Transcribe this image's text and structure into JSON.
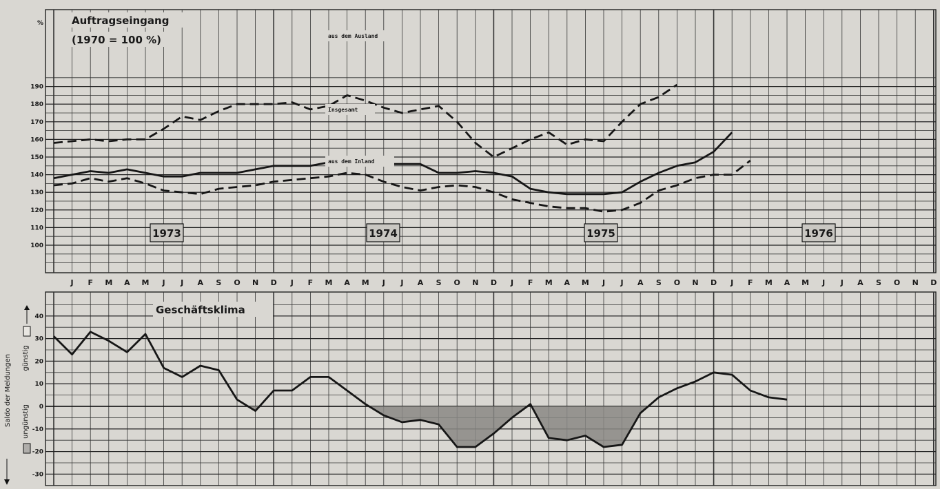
{
  "chart_data": [
    {
      "type": "line",
      "title": "Auftragseingang",
      "subtitle": "(1970 = 100 %)",
      "unit_label": "%",
      "ylim": [
        90,
        190
      ],
      "yticks": [
        100,
        110,
        120,
        130,
        140,
        150,
        160,
        170,
        180,
        190
      ],
      "x_start": "1972-12",
      "x_end": "1976-12",
      "grid": true,
      "series": [
        {
          "name": "aus dem Ausland",
          "style": "dashed",
          "x": [
            "1972-12",
            "1973-01",
            "1973-02",
            "1973-03",
            "1973-04",
            "1973-05",
            "1973-06",
            "1973-07",
            "1973-08",
            "1973-09",
            "1973-10",
            "1973-11",
            "1973-12",
            "1974-01",
            "1974-02",
            "1974-03",
            "1974-04",
            "1974-05",
            "1974-06",
            "1974-07",
            "1974-08",
            "1974-09",
            "1974-10",
            "1974-11",
            "1974-12",
            "1975-01",
            "1975-02",
            "1975-03",
            "1975-04",
            "1975-05",
            "1975-06",
            "1975-07",
            "1975-08",
            "1975-09",
            "1975-10",
            "1975-11",
            "1975-12",
            "1976-01",
            "1976-02"
          ],
          "values": [
            158,
            159,
            160,
            159,
            160,
            160,
            166,
            173,
            171,
            176,
            180,
            180,
            180,
            181,
            177,
            179,
            185,
            182,
            178,
            175,
            177,
            179,
            170,
            158,
            150,
            155,
            160,
            164,
            157,
            160,
            159,
            170,
            180,
            184,
            191,
            null,
            null,
            null,
            null
          ]
        },
        {
          "name": "Insgesamt",
          "style": "solid",
          "x": [
            "1972-12",
            "1973-01",
            "1973-02",
            "1973-03",
            "1973-04",
            "1973-05",
            "1973-06",
            "1973-07",
            "1973-08",
            "1973-09",
            "1973-10",
            "1973-11",
            "1973-12",
            "1974-01",
            "1974-02",
            "1974-03",
            "1974-04",
            "1974-05",
            "1974-06",
            "1974-07",
            "1974-08",
            "1974-09",
            "1974-10",
            "1974-11",
            "1974-12",
            "1975-01",
            "1975-02",
            "1975-03",
            "1975-04",
            "1975-05",
            "1975-06",
            "1975-07",
            "1975-08",
            "1975-09",
            "1975-10",
            "1975-11",
            "1975-12",
            "1976-01",
            "1976-02"
          ],
          "values": [
            138,
            140,
            142,
            141,
            143,
            141,
            139,
            139,
            141,
            141,
            141,
            143,
            145,
            145,
            145,
            147,
            149,
            150,
            146,
            146,
            146,
            141,
            141,
            142,
            141,
            139,
            132,
            130,
            129,
            129,
            129,
            130,
            136,
            141,
            145,
            147,
            153,
            164,
            null
          ]
        },
        {
          "name": "aus dem Inland",
          "style": "dashed",
          "x": [
            "1972-12",
            "1973-01",
            "1973-02",
            "1973-03",
            "1973-04",
            "1973-05",
            "1973-06",
            "1973-07",
            "1973-08",
            "1973-09",
            "1973-10",
            "1973-11",
            "1973-12",
            "1974-01",
            "1974-02",
            "1974-03",
            "1974-04",
            "1974-05",
            "1974-06",
            "1974-07",
            "1974-08",
            "1974-09",
            "1974-10",
            "1974-11",
            "1974-12",
            "1975-01",
            "1975-02",
            "1975-03",
            "1975-04",
            "1975-05",
            "1975-06",
            "1975-07",
            "1975-08",
            "1975-09",
            "1975-10",
            "1975-11",
            "1975-12",
            "1976-01",
            "1976-02"
          ],
          "values": [
            134,
            135,
            138,
            136,
            138,
            135,
            131,
            130,
            129,
            132,
            133,
            134,
            136,
            137,
            138,
            139,
            141,
            140,
            136,
            133,
            131,
            133,
            134,
            133,
            130,
            126,
            124,
            122,
            121,
            121,
            119,
            120,
            124,
            131,
            134,
            138,
            140,
            140,
            148
          ]
        }
      ],
      "annotations": [
        "aus dem Ausland",
        "Insgesamt",
        "aus dem Inland"
      ],
      "year_labels": [
        "1973",
        "1974",
        "1975",
        "1976"
      ],
      "month_labels": [
        "J",
        "F",
        "M",
        "A",
        "M",
        "J",
        "J",
        "A",
        "S",
        "O",
        "N",
        "D",
        "J",
        "F",
        "M",
        "A",
        "M",
        "J",
        "J",
        "A",
        "S",
        "O",
        "N",
        "D",
        "J",
        "F",
        "M",
        "A",
        "M",
        "J",
        "J",
        "A",
        "S",
        "O",
        "N",
        "D",
        "J",
        "F",
        "M",
        "A",
        "M",
        "J",
        "J",
        "A",
        "S",
        "O",
        "N",
        "D"
      ]
    },
    {
      "type": "line",
      "title": "Geschäftsklima",
      "ylabel": "Saldo der Meldungen",
      "legend": [
        "günstig",
        "ungünstig"
      ],
      "ylim": [
        -30,
        40
      ],
      "yticks": [
        -30,
        -20,
        -10,
        0,
        10,
        20,
        30,
        40
      ],
      "x_start": "1972-12",
      "x_end": "1976-12",
      "grid": true,
      "series": [
        {
          "name": "",
          "style": "solid",
          "x": [
            "1972-12",
            "1973-01",
            "1973-02",
            "1973-03",
            "1973-04",
            "1973-05",
            "1973-06",
            "1973-07",
            "1973-08",
            "1973-09",
            "1973-10",
            "1973-11",
            "1973-12",
            "1974-01",
            "1974-02",
            "1974-03",
            "1974-04",
            "1974-05",
            "1974-06",
            "1974-07",
            "1974-08",
            "1974-09",
            "1974-10",
            "1974-11",
            "1974-12",
            "1975-01",
            "1975-02",
            "1975-03",
            "1975-04",
            "1975-05",
            "1975-06",
            "1975-07",
            "1975-08",
            "1975-09",
            "1975-10",
            "1975-11",
            "1975-12",
            "1976-01",
            "1976-02",
            "1976-03",
            "1976-04"
          ],
          "values": [
            31,
            23,
            33,
            29,
            24,
            32,
            17,
            13,
            18,
            16,
            3,
            -2,
            7,
            7,
            13,
            13,
            7,
            1,
            -4,
            -7,
            -6,
            -8,
            -18,
            -18,
            -12,
            -5,
            1,
            -14,
            -15,
            -13,
            -18,
            -17,
            -3,
            4,
            8,
            11,
            15,
            14,
            7,
            4,
            3
          ]
        }
      ]
    }
  ]
}
